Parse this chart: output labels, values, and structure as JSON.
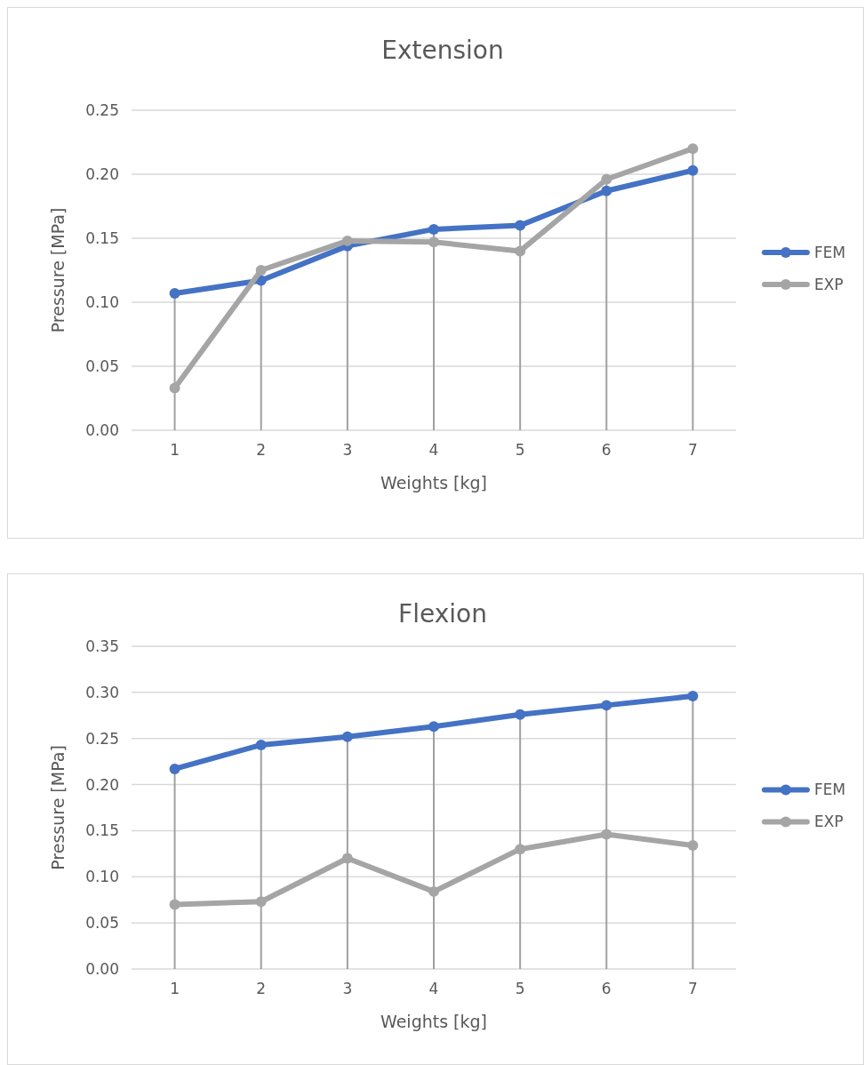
{
  "chart_data": [
    {
      "type": "line",
      "title": "Extension",
      "xlabel": "Weights [kg]",
      "ylabel": "Pressure [MPa]",
      "categories": [
        "1",
        "2",
        "3",
        "4",
        "5",
        "6",
        "7"
      ],
      "series": [
        {
          "name": "FEM",
          "color": "#4472c4",
          "values": [
            0.107,
            0.117,
            0.144,
            0.157,
            0.16,
            0.187,
            0.203
          ]
        },
        {
          "name": "EXP",
          "color": "#a5a5a5",
          "values": [
            0.033,
            0.125,
            0.148,
            0.147,
            0.14,
            0.196,
            0.22
          ]
        }
      ],
      "ylim": [
        0,
        0.25
      ],
      "yticks": [
        {
          "value": 0,
          "label": "0.00"
        },
        {
          "value": 0.05,
          "label": "0.05"
        },
        {
          "value": 0.1,
          "label": "0.10"
        },
        {
          "value": 0.15,
          "label": "0.15"
        },
        {
          "value": 0.2,
          "label": "0.20"
        },
        {
          "value": 0.25,
          "label": "0.25"
        }
      ],
      "ref_lines": [
        {
          "axis": "x",
          "value": "1",
          "color": "#a0a0a0"
        },
        {
          "axis": "x",
          "value": "2",
          "color": "#a0a0a0"
        },
        {
          "axis": "x",
          "value": "3",
          "color": "#a0a0a0"
        },
        {
          "axis": "x",
          "value": "4",
          "color": "#a0a0a0"
        },
        {
          "axis": "x",
          "value": "5",
          "color": "#a0a0a0"
        },
        {
          "axis": "x",
          "value": "6",
          "color": "#a0a0a0"
        },
        {
          "axis": "x",
          "value": "7",
          "color": "#a0a0a0"
        }
      ],
      "grid": "y",
      "legend": "right",
      "marker": "circle",
      "line_style": "solid"
    },
    {
      "type": "line",
      "title": "Flexion",
      "xlabel": "Weights [kg]",
      "ylabel": "Pressure [MPa]",
      "categories": [
        "1",
        "2",
        "3",
        "4",
        "5",
        "6",
        "7"
      ],
      "series": [
        {
          "name": "FEM",
          "color": "#4472c4",
          "values": [
            0.217,
            0.243,
            0.252,
            0.263,
            0.276,
            0.286,
            0.296
          ]
        },
        {
          "name": "EXP",
          "color": "#a5a5a5",
          "values": [
            0.07,
            0.073,
            0.12,
            0.084,
            0.13,
            0.146,
            0.134
          ]
        }
      ],
      "ylim": [
        0,
        0.35
      ],
      "yticks": [
        {
          "value": 0,
          "label": "0.00"
        },
        {
          "value": 0.05,
          "label": "0.05"
        },
        {
          "value": 0.1,
          "label": "0.10"
        },
        {
          "value": 0.15,
          "label": "0.15"
        },
        {
          "value": 0.2,
          "label": "0.20"
        },
        {
          "value": 0.25,
          "label": "0.25"
        },
        {
          "value": 0.3,
          "label": "0.30"
        },
        {
          "value": 0.35,
          "label": "0.35"
        }
      ],
      "ref_lines": [
        {
          "axis": "x",
          "value": "1",
          "color": "#a0a0a0"
        },
        {
          "axis": "x",
          "value": "2",
          "color": "#a0a0a0"
        },
        {
          "axis": "x",
          "value": "3",
          "color": "#a0a0a0"
        },
        {
          "axis": "x",
          "value": "4",
          "color": "#a0a0a0"
        },
        {
          "axis": "x",
          "value": "5",
          "color": "#a0a0a0"
        },
        {
          "axis": "x",
          "value": "6",
          "color": "#a0a0a0"
        },
        {
          "axis": "x",
          "value": "7",
          "color": "#a0a0a0"
        }
      ],
      "grid": "y",
      "legend": "right",
      "marker": "circle",
      "line_style": "solid"
    }
  ]
}
